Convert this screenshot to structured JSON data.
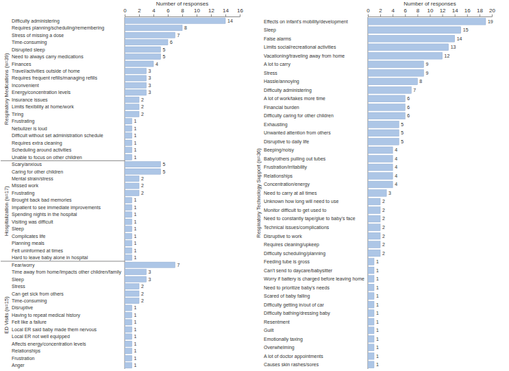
{
  "chart_data": [
    {
      "type": "bar",
      "orientation": "horizontal",
      "title": "Respiratory Medications (n=39)",
      "x_label": "Number of responses",
      "categories": [
        "Difficulty administering",
        "Requires planning/scheduling/remembering",
        "Stress of missing a dose",
        "Time-consuming",
        "Disrupted sleep",
        "Need to always carry medications",
        "Finances",
        "Travel/activities outside of home",
        "Requires frequent refills/managing refills",
        "Inconvenient",
        "Energy/concentration levels",
        "Insurance issues",
        "Limits flexibility at home/work",
        "Tiring",
        "Frustrating",
        "Nebulizer is loud",
        "Difficult without set administration schedule",
        "Requires extra cleaning",
        "Scheduling around activities",
        "Unable to focus on other children"
      ],
      "values": [
        14,
        8,
        7,
        6,
        5,
        5,
        4,
        3,
        3,
        3,
        3,
        2,
        2,
        2,
        1,
        1,
        1,
        1,
        1,
        1
      ],
      "color": "#adc6e6",
      "xlim": [
        0,
        16
      ],
      "xticks": [
        0,
        2,
        4,
        6,
        8,
        10,
        12,
        14,
        16
      ],
      "data_labels": true
    },
    {
      "type": "bar",
      "orientation": "horizontal",
      "title": "Hospitalization (n=17)",
      "categories": [
        "Scary/anxious",
        "Caring for other children",
        "Mental strain/stress",
        "Missed work",
        "Frustrating",
        "Brought back bad memories",
        "Impatient to see immediate improvements",
        "Spending nights in the hospital",
        "Visiting was difficult",
        "Sleep",
        "Complicates life",
        "Planning meals",
        "Felt uninformed at times",
        "Hard to leave baby alone in hospital"
      ],
      "values": [
        5,
        5,
        2,
        2,
        2,
        1,
        1,
        1,
        1,
        1,
        1,
        1,
        1,
        1
      ],
      "color": "#adc6e6",
      "xlim": [
        0,
        16
      ],
      "tick_labels": false,
      "data_labels": true
    },
    {
      "type": "bar",
      "orientation": "horizontal",
      "title": "ED Visits (n=15)",
      "categories": [
        "Fear/worry",
        "Time away from home/Impacts other children/family",
        "Sleep",
        "Stress",
        "Can get sick from others",
        "Time-consuming",
        "Disruptive",
        "Having to repeat medical history",
        "Felt like a failure",
        "Local ER said baby made them nervous",
        "Local ER not well equipped",
        "Affects energy/concentration levels",
        "Relationships",
        "Frustration",
        "Anger"
      ],
      "values": [
        7,
        3,
        3,
        2,
        2,
        2,
        1,
        1,
        1,
        1,
        1,
        1,
        1,
        1,
        1
      ],
      "color": "#adc6e6",
      "xlim": [
        0,
        16
      ],
      "tick_labels": false,
      "data_labels": true
    },
    {
      "type": "bar",
      "orientation": "horizontal",
      "title": "Respiratory Technology Support (n=36)",
      "x_label": "Number of responses",
      "categories": [
        "Effects on infant's mobility/development",
        "Sleep",
        "False alarms",
        "Limits social/recreational activities",
        "Vacationing/traveling away from home",
        "A lot to carry",
        "Stress",
        "Hassle/annoying",
        "Difficulty administering",
        "A lot of work/takes more time",
        "Financial burden",
        "Difficulty caring for other children",
        "Exhausting",
        "Unwanted attention from others",
        "Disruptive to daily life",
        "Beeping/noisy",
        "Baby/others pulling out tubes",
        "Frustration/irritability",
        "Relationships",
        "Concentration/energy",
        "Need to carry at all times",
        "Unknown how long will need to use",
        "Monitor difficult to get used to",
        "Need to constantly tape/glue to baby's face",
        "Technical issues/complications",
        "Disruptive to work",
        "Requires cleaning/upkeep",
        "Difficulty scheduling/planning",
        "Feeding tube is gross",
        "Can't send to daycare/babysitter",
        "Worry if battery is charged before leaving home",
        "Need to prioritize baby's needs",
        "Scared of baby falling",
        "Difficulty getting in/out of car",
        "Difficulty bathing/dressing baby",
        "Resentment",
        "Guilt",
        "Emotionally taxing",
        "Overwhelming",
        "A lot of doctor appointments",
        "Causes skin rashes/sores"
      ],
      "values": [
        19,
        15,
        14,
        13,
        12,
        9,
        9,
        8,
        7,
        6,
        6,
        6,
        5,
        5,
        5,
        4,
        4,
        4,
        4,
        4,
        3,
        2,
        2,
        2,
        2,
        2,
        2,
        2,
        1,
        1,
        1,
        1,
        1,
        1,
        1,
        1,
        1,
        1,
        1,
        1,
        1
      ],
      "color": "#adc6e6",
      "xlim": [
        0,
        20
      ],
      "xticks": [
        0,
        2,
        4,
        6,
        8,
        10,
        12,
        14,
        16,
        18,
        20
      ],
      "data_labels": true
    }
  ]
}
